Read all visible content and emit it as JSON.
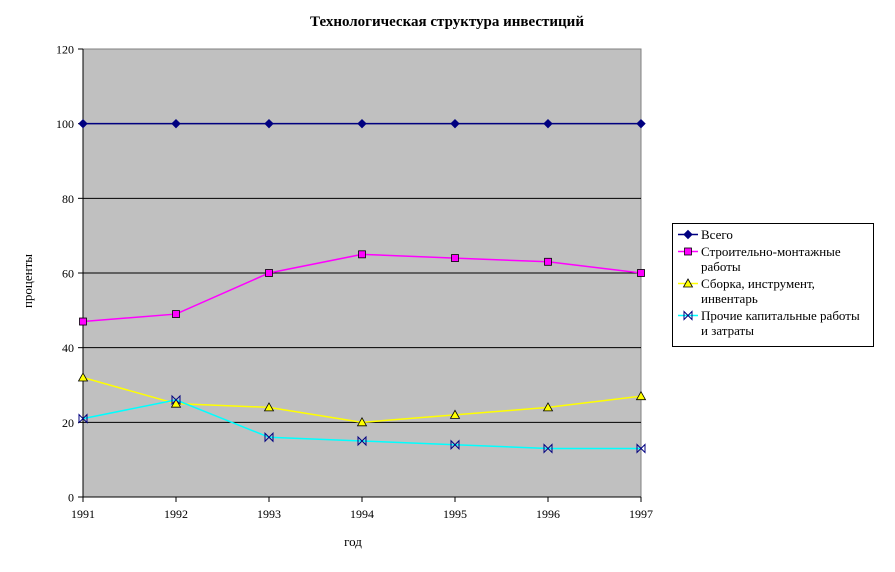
{
  "chart_data": {
    "type": "line",
    "title": "Технологическая структура инвестиций",
    "xlabel": "год",
    "ylabel": "проценты",
    "x": [
      "1991",
      "1992",
      "1993",
      "1994",
      "1995",
      "1996",
      "1997"
    ],
    "ylim": [
      0,
      120
    ],
    "yticks": [
      "0",
      "20",
      "40",
      "60",
      "80",
      "100",
      "120"
    ],
    "grid": true,
    "legend_position": "right",
    "plot_background": "#c0c0c0",
    "series": [
      {
        "name": "Всего",
        "values": [
          100,
          100,
          100,
          100,
          100,
          100,
          100
        ],
        "color": "#000080",
        "marker": "diamond"
      },
      {
        "name": "Строительно-монтажные работы",
        "values": [
          47,
          49,
          60,
          65,
          64,
          63,
          60
        ],
        "color": "#ff00ff",
        "marker": "square"
      },
      {
        "name": "Сборка, инструмент, инвентарь",
        "values": [
          32,
          25,
          24,
          20,
          22,
          24,
          27
        ],
        "color": "#ffff00",
        "marker": "triangle"
      },
      {
        "name": "Прочие капитальные работы и затраты",
        "values": [
          21,
          26,
          16,
          15,
          14,
          13,
          13
        ],
        "color": "#00ffff",
        "marker": "bowtie"
      }
    ]
  }
}
